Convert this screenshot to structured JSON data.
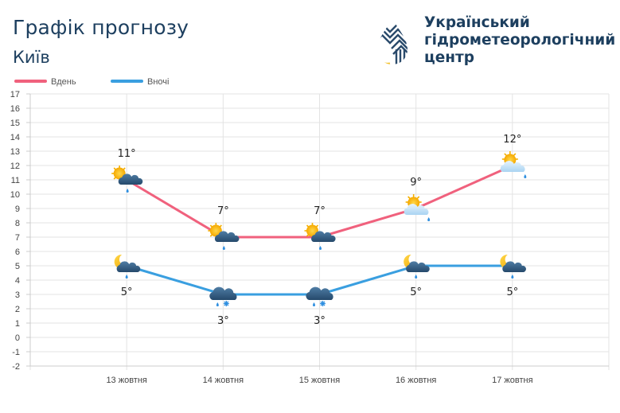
{
  "header": {
    "title": "Графік прогнозу",
    "city": "Київ"
  },
  "org": {
    "line1": "Український",
    "line2": "гідрометеорологічний",
    "line3": "центр"
  },
  "colors": {
    "day": "#f0617d",
    "night": "#3a9fe0",
    "text": "#1d3f5f",
    "logo_blue": "#2a4a6b",
    "logo_yellow": "#f2c12e"
  },
  "chart_data": {
    "type": "line",
    "title": "Графік прогнозу",
    "categories": [
      "13 жовтня",
      "14 жовтня",
      "15 жовтня",
      "16 жовтня",
      "17 жовтня"
    ],
    "ylim": [
      -2,
      17
    ],
    "yticks": [
      -2,
      -1,
      0,
      1,
      2,
      3,
      4,
      5,
      6,
      7,
      8,
      9,
      10,
      11,
      12,
      13,
      14,
      15,
      16,
      17
    ],
    "grid": true,
    "legend_position": "top-left",
    "series": [
      {
        "name": "Вдень",
        "key": "day",
        "values": [
          11,
          7,
          7,
          9,
          12
        ],
        "labels": [
          "11°",
          "7°",
          "7°",
          "9°",
          "12°"
        ],
        "icons": [
          "sun-cloud-rain-icon",
          "sun-cloud-rain-icon",
          "sun-cloud-rain-icon",
          "sun-light-cloud-rain-icon",
          "sun-light-cloud-rain-icon"
        ]
      },
      {
        "name": "Вночі",
        "key": "night",
        "values": [
          5,
          3,
          3,
          5,
          5
        ],
        "labels": [
          "5°",
          "3°",
          "3°",
          "5°",
          "5°"
        ],
        "icons": [
          "moon-cloud-rain-icon",
          "cloud-rain-snow-icon",
          "cloud-rain-snow-icon",
          "moon-cloud-rain-icon",
          "moon-cloud-rain-icon"
        ]
      }
    ]
  }
}
